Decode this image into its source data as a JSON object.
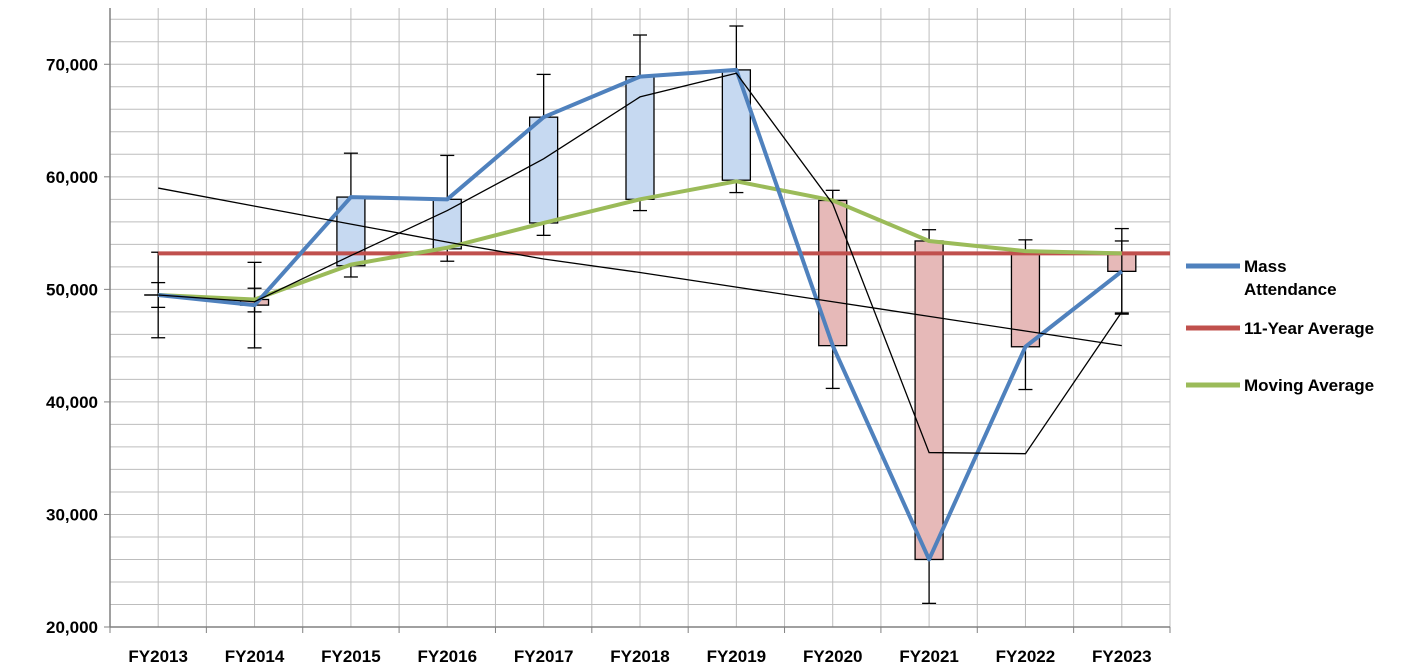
{
  "chart_data": {
    "type": "line",
    "categories": [
      "FY2013",
      "FY2014",
      "FY2015",
      "FY2016",
      "FY2017",
      "FY2018",
      "FY2019",
      "FY2020",
      "FY2021",
      "FY2022",
      "FY2023"
    ],
    "y_ticks": [
      {
        "value": 20000,
        "label": "20,000"
      },
      {
        "value": 30000,
        "label": "30,000"
      },
      {
        "value": 40000,
        "label": "40,000"
      },
      {
        "value": 50000,
        "label": "50,000"
      },
      {
        "value": 60000,
        "label": "60,000"
      },
      {
        "value": 70000,
        "label": "70,000"
      }
    ],
    "ylim": [
      20000,
      75000
    ],
    "grid": true,
    "legend_position": "right",
    "series": [
      {
        "name": "Mass Attendance",
        "color": "#4F81BD",
        "values": [
          49500,
          48600,
          58200,
          58000,
          65300,
          68900,
          69500,
          45000,
          26000,
          44900,
          51600
        ]
      },
      {
        "name": "11-Year Average",
        "color": "#C0504D",
        "values": [
          53200,
          53200,
          53200,
          53200,
          53200,
          53200,
          53200,
          53200,
          53200,
          53200,
          53200
        ]
      },
      {
        "name": "Moving Average",
        "color": "#9BBB59",
        "values": [
          49500,
          49100,
          52200,
          53700,
          55900,
          58000,
          59600,
          57900,
          54300,
          53400,
          53200
        ]
      }
    ],
    "candles": {
      "up_color": "#C6D9F1",
      "down_color": "#E6B9B8",
      "items": [
        {
          "open": 49500,
          "close": 49500,
          "high": 53300,
          "low": 45700
        },
        {
          "open": 49100,
          "close": 48600,
          "high": 52400,
          "low": 44800
        },
        {
          "open": 52100,
          "close": 58200,
          "high": 62100,
          "low": 51100
        },
        {
          "open": 53600,
          "close": 58000,
          "high": 61900,
          "low": 52500
        },
        {
          "open": 55900,
          "close": 65300,
          "high": 69100,
          "low": 54800
        },
        {
          "open": 58000,
          "close": 68900,
          "high": 72600,
          "low": 57000
        },
        {
          "open": 59700,
          "close": 69500,
          "high": 73400,
          "low": 58600
        },
        {
          "open": 57900,
          "close": 45000,
          "high": 58800,
          "low": 41200
        },
        {
          "open": 54300,
          "close": 26000,
          "high": 55300,
          "low": 22100
        },
        {
          "open": 53400,
          "close": 44900,
          "high": 54400,
          "low": 41100
        },
        {
          "open": 53200,
          "close": 51600,
          "high": 55400,
          "low": 47800
        }
      ]
    },
    "extra_error_bars": [
      {
        "category_index": 0,
        "high": 50600,
        "low": 48400
      },
      {
        "category_index": 1,
        "high": 50100,
        "low": 48000
      },
      {
        "category_index": 10,
        "high": 54300,
        "low": 47900
      }
    ],
    "trend_line": {
      "color": "#000000",
      "values": [
        59000,
        57400,
        55800,
        54200,
        52700,
        51500,
        50200,
        48900,
        47600,
        46300,
        45000
      ]
    },
    "thin_line": {
      "color": "#000000",
      "values": [
        49500,
        48900,
        53000,
        57000,
        61600,
        67100,
        69200,
        57600,
        35500,
        35400,
        48000
      ]
    }
  }
}
